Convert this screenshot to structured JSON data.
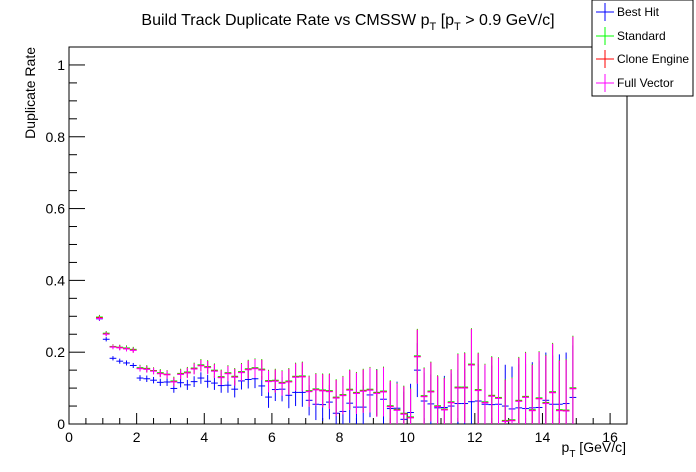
{
  "chart_data": {
    "type": "scatter",
    "title": "Build Track Duplicate Rate vs CMSSW",
    "title_pt": {
      "p": "p",
      "sub": "T"
    },
    "title_cut": {
      "open": "[p",
      "sub": "T",
      "rest": " > 0.9 GeV/c]"
    },
    "xlabel": {
      "p": "p",
      "sub": "T",
      "unit": " [GeV/c]"
    },
    "ylabel": "Duplicate Rate",
    "xlim": [
      0,
      16.5
    ],
    "ylim": [
      0,
      1.05
    ],
    "x_ticks": [
      "0",
      "2",
      "4",
      "6",
      "8",
      "10",
      "12",
      "14",
      "16"
    ],
    "y_ticks": [
      "0",
      "0.2",
      "0.4",
      "0.6",
      "0.8",
      "1"
    ],
    "grid": false,
    "legend_position": "top-right",
    "x": [
      0.9,
      1.1,
      1.3,
      1.5,
      1.7,
      1.9,
      2.1,
      2.3,
      2.5,
      2.7,
      2.9,
      3.1,
      3.3,
      3.5,
      3.7,
      3.9,
      4.1,
      4.3,
      4.5,
      4.7,
      4.9,
      5.1,
      5.3,
      5.5,
      5.7,
      5.9,
      6.1,
      6.3,
      6.5,
      6.7,
      6.9,
      7.1,
      7.3,
      7.5,
      7.7,
      7.9,
      8.1,
      8.3,
      8.5,
      8.7,
      8.9,
      9.1,
      9.3,
      9.5,
      9.7,
      9.9,
      10.1,
      10.3,
      10.5,
      10.7,
      10.9,
      11.1,
      11.3,
      11.5,
      11.7,
      11.9,
      12.1,
      12.3,
      12.5,
      12.7,
      12.9,
      13.1,
      13.3,
      13.5,
      13.7,
      13.9,
      14.1,
      14.3,
      14.5,
      14.7,
      14.9
    ],
    "series": [
      {
        "name": "Best Hit",
        "color": "#0000ff",
        "values": [
          0.293,
          0.236,
          0.183,
          0.175,
          0.17,
          0.163,
          0.128,
          0.126,
          0.122,
          0.116,
          0.117,
          0.099,
          0.115,
          0.109,
          0.118,
          0.128,
          0.119,
          0.114,
          0.107,
          0.108,
          0.097,
          0.12,
          0.124,
          0.126,
          0.106,
          0.075,
          0.096,
          0.097,
          0.08,
          0.088,
          0.088,
          0.066,
          0.055,
          0.054,
          0.061,
          0.03,
          0.035,
          0.058,
          0.047,
          0.047,
          0.081,
          0.088,
          0.069,
          0.043,
          0.044,
          0.013,
          0.032,
          0.15,
          0.064,
          0.056,
          0.045,
          0.046,
          0.05,
          0.057,
          0.057,
          0.062,
          0.064,
          0.055,
          0.054,
          0.055,
          0.05,
          0.042,
          0.045,
          0.043,
          0.045,
          0.046,
          0.066,
          0.055,
          0.055,
          0.057,
          0.074
        ],
        "errors": [
          0.006,
          0.006,
          0.006,
          0.007,
          0.007,
          0.007,
          0.008,
          0.009,
          0.009,
          0.01,
          0.011,
          0.012,
          0.013,
          0.014,
          0.015,
          0.016,
          0.018,
          0.019,
          0.02,
          0.021,
          0.023,
          0.024,
          0.025,
          0.026,
          0.028,
          0.03,
          0.032,
          0.034,
          0.036,
          0.038,
          0.04,
          0.042,
          0.044,
          0.046,
          0.048,
          0.05,
          0.052,
          0.055,
          0.057,
          0.06,
          0.062,
          0.065,
          0.068,
          0.071,
          0.074,
          0.077,
          0.08,
          0.075,
          0.079,
          0.082,
          0.085,
          0.088,
          0.091,
          0.094,
          0.097,
          0.1,
          0.103,
          0.106,
          0.109,
          0.112,
          0.115,
          0.118,
          0.121,
          0.124,
          0.127,
          0.13,
          0.133,
          0.136,
          0.139,
          0.142,
          0.145
        ]
      },
      {
        "name": "Standard",
        "color": "#00ff00",
        "values": [
          0.298,
          0.253,
          0.216,
          0.214,
          0.212,
          0.208,
          0.157,
          0.155,
          0.149,
          0.143,
          0.139,
          0.12,
          0.141,
          0.145,
          0.156,
          0.165,
          0.16,
          0.15,
          0.132,
          0.143,
          0.133,
          0.146,
          0.154,
          0.157,
          0.153,
          0.121,
          0.122,
          0.116,
          0.12,
          0.133,
          0.134,
          0.093,
          0.098,
          0.095,
          0.093,
          0.075,
          0.082,
          0.097,
          0.088,
          0.094,
          0.097,
          0.088,
          0.092,
          0.051,
          0.041,
          0.03,
          0.02,
          0.19,
          0.079,
          0.092,
          0.051,
          0.042,
          0.062,
          0.103,
          0.103,
          0.167,
          0.096,
          0.062,
          0.08,
          0.074,
          0.01,
          0.012,
          0.066,
          0.077,
          0.04,
          0.073,
          0.06,
          0.09,
          0.04,
          0.039,
          0.101
        ],
        "errors": [
          0.006,
          0.006,
          0.006,
          0.007,
          0.007,
          0.007,
          0.008,
          0.009,
          0.009,
          0.01,
          0.011,
          0.012,
          0.013,
          0.014,
          0.015,
          0.016,
          0.018,
          0.019,
          0.02,
          0.021,
          0.023,
          0.024,
          0.025,
          0.026,
          0.028,
          0.03,
          0.032,
          0.034,
          0.036,
          0.038,
          0.04,
          0.042,
          0.044,
          0.046,
          0.048,
          0.05,
          0.052,
          0.055,
          0.057,
          0.06,
          0.062,
          0.065,
          0.068,
          0.071,
          0.074,
          0.077,
          0.08,
          0.075,
          0.079,
          0.082,
          0.085,
          0.088,
          0.091,
          0.094,
          0.097,
          0.1,
          0.103,
          0.106,
          0.109,
          0.112,
          0.115,
          0.118,
          0.121,
          0.124,
          0.127,
          0.13,
          0.133,
          0.136,
          0.139,
          0.142,
          0.145
        ]
      },
      {
        "name": "Clone Engine",
        "color": "#ff0000",
        "values": [
          0.296,
          0.251,
          0.215,
          0.213,
          0.21,
          0.206,
          0.155,
          0.153,
          0.148,
          0.141,
          0.138,
          0.118,
          0.139,
          0.143,
          0.154,
          0.163,
          0.158,
          0.148,
          0.13,
          0.141,
          0.131,
          0.144,
          0.152,
          0.155,
          0.151,
          0.119,
          0.12,
          0.114,
          0.118,
          0.131,
          0.132,
          0.091,
          0.096,
          0.093,
          0.091,
          0.073,
          0.08,
          0.095,
          0.086,
          0.092,
          0.095,
          0.086,
          0.09,
          0.049,
          0.039,
          0.028,
          0.018,
          0.188,
          0.077,
          0.09,
          0.049,
          0.04,
          0.06,
          0.101,
          0.101,
          0.165,
          0.094,
          0.06,
          0.078,
          0.072,
          0.008,
          0.01,
          0.064,
          0.075,
          0.038,
          0.071,
          0.058,
          0.088,
          0.038,
          0.037,
          0.099
        ],
        "errors": [
          0.006,
          0.006,
          0.006,
          0.007,
          0.007,
          0.007,
          0.008,
          0.009,
          0.009,
          0.01,
          0.011,
          0.012,
          0.013,
          0.014,
          0.015,
          0.016,
          0.018,
          0.019,
          0.02,
          0.021,
          0.023,
          0.024,
          0.025,
          0.026,
          0.028,
          0.03,
          0.032,
          0.034,
          0.036,
          0.038,
          0.04,
          0.042,
          0.044,
          0.046,
          0.048,
          0.05,
          0.052,
          0.055,
          0.057,
          0.06,
          0.062,
          0.065,
          0.068,
          0.071,
          0.074,
          0.077,
          0.08,
          0.075,
          0.079,
          0.082,
          0.085,
          0.088,
          0.091,
          0.094,
          0.097,
          0.1,
          0.103,
          0.106,
          0.109,
          0.112,
          0.115,
          0.118,
          0.121,
          0.124,
          0.127,
          0.13,
          0.133,
          0.136,
          0.139,
          0.142,
          0.145
        ]
      },
      {
        "name": "Full Vector",
        "color": "#ff00ff",
        "values": [
          0.294,
          0.25,
          0.214,
          0.212,
          0.209,
          0.205,
          0.154,
          0.152,
          0.147,
          0.14,
          0.137,
          0.117,
          0.138,
          0.142,
          0.153,
          0.162,
          0.157,
          0.147,
          0.129,
          0.14,
          0.13,
          0.143,
          0.151,
          0.154,
          0.15,
          0.118,
          0.119,
          0.113,
          0.117,
          0.13,
          0.131,
          0.09,
          0.095,
          0.092,
          0.09,
          0.072,
          0.079,
          0.094,
          0.085,
          0.091,
          0.094,
          0.085,
          0.089,
          0.048,
          0.038,
          0.027,
          0.017,
          0.187,
          0.076,
          0.089,
          0.048,
          0.039,
          0.059,
          0.1,
          0.1,
          0.164,
          0.093,
          0.059,
          0.077,
          0.071,
          0.007,
          0.009,
          0.063,
          0.074,
          0.037,
          0.07,
          0.057,
          0.087,
          0.037,
          0.036,
          0.098
        ],
        "errors": [
          0.006,
          0.006,
          0.006,
          0.007,
          0.007,
          0.007,
          0.008,
          0.009,
          0.009,
          0.01,
          0.011,
          0.012,
          0.013,
          0.014,
          0.015,
          0.016,
          0.018,
          0.019,
          0.02,
          0.021,
          0.023,
          0.024,
          0.025,
          0.026,
          0.028,
          0.03,
          0.032,
          0.034,
          0.036,
          0.038,
          0.04,
          0.042,
          0.044,
          0.046,
          0.048,
          0.05,
          0.052,
          0.055,
          0.057,
          0.06,
          0.062,
          0.065,
          0.068,
          0.071,
          0.074,
          0.077,
          0.08,
          0.075,
          0.079,
          0.082,
          0.085,
          0.088,
          0.091,
          0.094,
          0.097,
          0.1,
          0.103,
          0.106,
          0.109,
          0.112,
          0.115,
          0.118,
          0.121,
          0.124,
          0.127,
          0.13,
          0.133,
          0.136,
          0.139,
          0.142,
          0.145
        ]
      }
    ],
    "x_error_half_width": 0.1
  }
}
